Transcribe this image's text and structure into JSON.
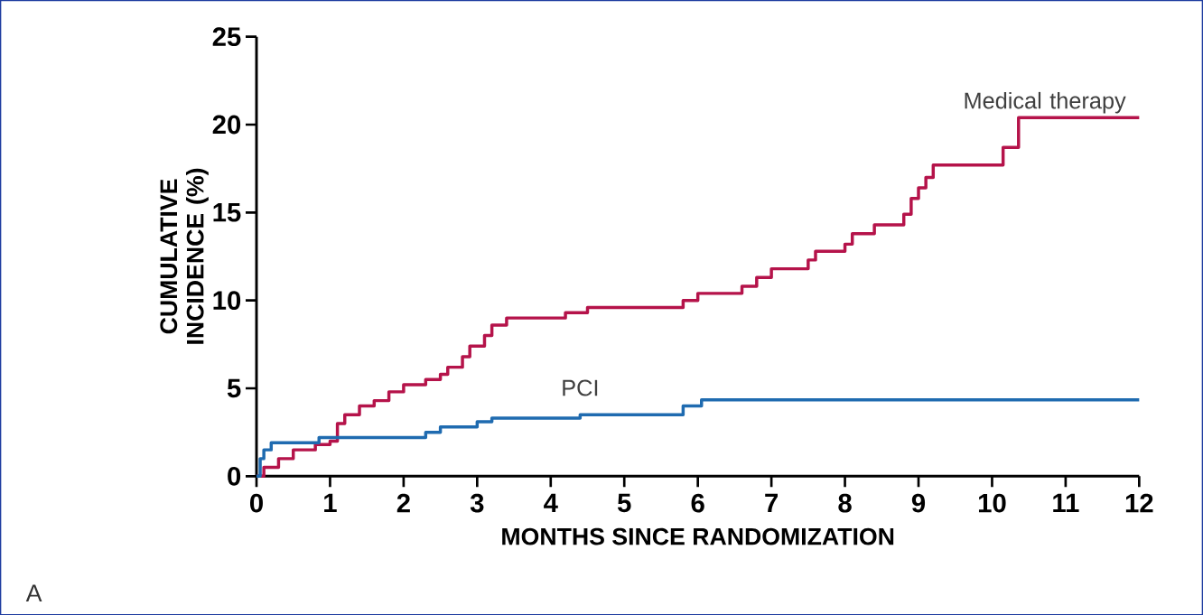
{
  "chart_data": {
    "type": "step",
    "xlabel": "MONTHS SINCE RANDOMIZATION",
    "ylabel": "CUMULATIVE INCIDENCE (%)",
    "xlim": [
      0,
      12
    ],
    "xticks": [
      0,
      1,
      2,
      3,
      4,
      5,
      6,
      7,
      8,
      9,
      10,
      11,
      12
    ],
    "ylim": [
      0,
      25
    ],
    "yticks": [
      0,
      5,
      10,
      15,
      20,
      25
    ],
    "grid": false,
    "legend": false,
    "annotations": [
      "A"
    ],
    "series": [
      {
        "name": "Medical therapy",
        "color": "#b5134a",
        "x": [
          0,
          0.1,
          0.3,
          0.5,
          0.8,
          1.0,
          1.1,
          1.2,
          1.4,
          1.6,
          1.8,
          2.0,
          2.3,
          2.5,
          2.6,
          2.8,
          2.9,
          3.1,
          3.2,
          3.4,
          4.2,
          4.5,
          5.8,
          6.0,
          6.6,
          6.8,
          7.0,
          7.5,
          7.6,
          8.0,
          8.1,
          8.4,
          8.8,
          8.9,
          9.0,
          9.1,
          9.2,
          10.15,
          10.36,
          12
        ],
        "values": [
          0,
          0.5,
          1.0,
          1.5,
          1.8,
          2.0,
          3.0,
          3.5,
          4.0,
          4.3,
          4.8,
          5.2,
          5.5,
          5.8,
          6.2,
          6.8,
          7.4,
          8.0,
          8.6,
          9.0,
          9.3,
          9.6,
          10.0,
          10.4,
          10.8,
          11.3,
          11.8,
          12.3,
          12.8,
          13.2,
          13.8,
          14.3,
          14.9,
          15.8,
          16.4,
          17.0,
          17.7,
          18.7,
          20.4,
          20.4
        ]
      },
      {
        "name": "PCI",
        "color": "#1f6bb0",
        "x": [
          0,
          0.05,
          0.1,
          0.2,
          0.85,
          2.3,
          2.5,
          3.0,
          3.2,
          4.4,
          5.8,
          6.05,
          12
        ],
        "values": [
          0,
          1.0,
          1.5,
          1.9,
          2.2,
          2.5,
          2.8,
          3.1,
          3.3,
          3.5,
          4.0,
          4.35,
          4.35
        ]
      }
    ]
  }
}
